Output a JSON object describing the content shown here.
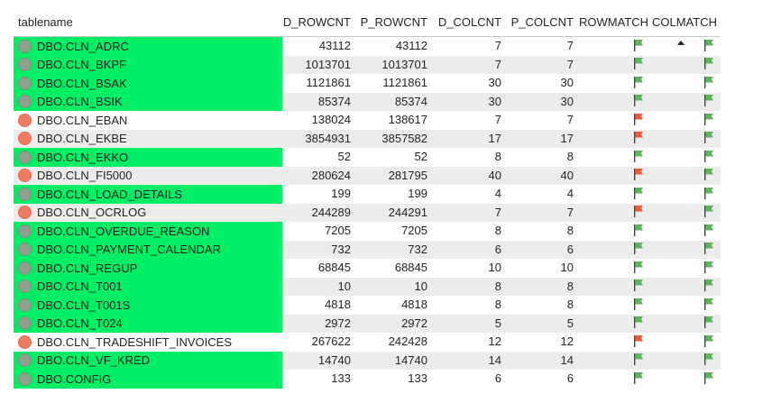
{
  "columns": {
    "name": "tablename",
    "d_rowcnt": "D_ROWCNT",
    "p_rowcnt": "P_ROWCNT",
    "d_colcnt": "D_COLCNT",
    "p_colcnt": "P_COLCNT",
    "rowmatch": "ROWMATCH",
    "colmatch": "COLMATCH"
  },
  "colors": {
    "green_highlight": "#00ee66",
    "status_ok": "#8ea08f",
    "status_mismatch": "#f07a62",
    "flag_ok": "#5fb35f",
    "flag_mismatch": "#f05a3a"
  },
  "sort": {
    "column": "COLMATCH",
    "direction": "ascending"
  },
  "rows": [
    {
      "name": "DBO.CLN_ADRC",
      "d_rowcnt": "43112",
      "p_rowcnt": "43112",
      "d_colcnt": "7",
      "p_colcnt": "7",
      "status": "ok",
      "rowmatch": "green-flag-icon",
      "colmatch": "green-flag-icon"
    },
    {
      "name": "DBO.CLN_BKPF",
      "d_rowcnt": "1013701",
      "p_rowcnt": "1013701",
      "d_colcnt": "7",
      "p_colcnt": "7",
      "status": "ok",
      "rowmatch": "green-flag-icon",
      "colmatch": "green-flag-icon"
    },
    {
      "name": "DBO.CLN_BSAK",
      "d_rowcnt": "1121861",
      "p_rowcnt": "1121861",
      "d_colcnt": "30",
      "p_colcnt": "30",
      "status": "ok",
      "rowmatch": "green-flag-icon",
      "colmatch": "green-flag-icon"
    },
    {
      "name": "DBO.CLN_BSIK",
      "d_rowcnt": "85374",
      "p_rowcnt": "85374",
      "d_colcnt": "30",
      "p_colcnt": "30",
      "status": "ok",
      "rowmatch": "green-flag-icon",
      "colmatch": "green-flag-icon"
    },
    {
      "name": "DBO.CLN_EBAN",
      "d_rowcnt": "138024",
      "p_rowcnt": "138617",
      "d_colcnt": "7",
      "p_colcnt": "7",
      "status": "mismatch",
      "rowmatch": "red-flag-icon",
      "colmatch": "green-flag-icon"
    },
    {
      "name": "DBO.CLN_EKBE",
      "d_rowcnt": "3854931",
      "p_rowcnt": "3857582",
      "d_colcnt": "17",
      "p_colcnt": "17",
      "status": "mismatch",
      "rowmatch": "red-flag-icon",
      "colmatch": "green-flag-icon"
    },
    {
      "name": "DBO.CLN_EKKO",
      "d_rowcnt": "52",
      "p_rowcnt": "52",
      "d_colcnt": "8",
      "p_colcnt": "8",
      "status": "ok",
      "rowmatch": "green-flag-icon",
      "colmatch": "green-flag-icon"
    },
    {
      "name": "DBO.CLN_FI5000",
      "d_rowcnt": "280624",
      "p_rowcnt": "281795",
      "d_colcnt": "40",
      "p_colcnt": "40",
      "status": "mismatch",
      "rowmatch": "red-flag-icon",
      "colmatch": "green-flag-icon"
    },
    {
      "name": "DBO.CLN_LOAD_DETAILS",
      "d_rowcnt": "199",
      "p_rowcnt": "199",
      "d_colcnt": "4",
      "p_colcnt": "4",
      "status": "ok",
      "rowmatch": "green-flag-icon",
      "colmatch": "green-flag-icon"
    },
    {
      "name": "DBO.CLN_OCRLOG",
      "d_rowcnt": "244289",
      "p_rowcnt": "244291",
      "d_colcnt": "7",
      "p_colcnt": "7",
      "status": "mismatch",
      "rowmatch": "red-flag-icon",
      "colmatch": "green-flag-icon"
    },
    {
      "name": "DBO.CLN_OVERDUE_REASON",
      "d_rowcnt": "7205",
      "p_rowcnt": "7205",
      "d_colcnt": "8",
      "p_colcnt": "8",
      "status": "ok",
      "rowmatch": "green-flag-icon",
      "colmatch": "green-flag-icon"
    },
    {
      "name": "DBO.CLN_PAYMENT_CALENDAR",
      "d_rowcnt": "732",
      "p_rowcnt": "732",
      "d_colcnt": "6",
      "p_colcnt": "6",
      "status": "ok",
      "rowmatch": "green-flag-icon",
      "colmatch": "green-flag-icon"
    },
    {
      "name": "DBO.CLN_REGUP",
      "d_rowcnt": "68845",
      "p_rowcnt": "68845",
      "d_colcnt": "10",
      "p_colcnt": "10",
      "status": "ok",
      "rowmatch": "green-flag-icon",
      "colmatch": "green-flag-icon"
    },
    {
      "name": "DBO.CLN_T001",
      "d_rowcnt": "10",
      "p_rowcnt": "10",
      "d_colcnt": "8",
      "p_colcnt": "8",
      "status": "ok",
      "rowmatch": "green-flag-icon",
      "colmatch": "green-flag-icon"
    },
    {
      "name": "DBO.CLN_T001S",
      "d_rowcnt": "4818",
      "p_rowcnt": "4818",
      "d_colcnt": "8",
      "p_colcnt": "8",
      "status": "ok",
      "rowmatch": "green-flag-icon",
      "colmatch": "green-flag-icon"
    },
    {
      "name": "DBO.CLN_T024",
      "d_rowcnt": "2972",
      "p_rowcnt": "2972",
      "d_colcnt": "5",
      "p_colcnt": "5",
      "status": "ok",
      "rowmatch": "green-flag-icon",
      "colmatch": "green-flag-icon"
    },
    {
      "name": "DBO.CLN_TRADESHIFT_INVOICES",
      "d_rowcnt": "267622",
      "p_rowcnt": "242428",
      "d_colcnt": "12",
      "p_colcnt": "12",
      "status": "mismatch",
      "rowmatch": "red-flag-icon",
      "colmatch": "green-flag-icon"
    },
    {
      "name": "DBO.CLN_VF_KRED",
      "d_rowcnt": "14740",
      "p_rowcnt": "14740",
      "d_colcnt": "14",
      "p_colcnt": "14",
      "status": "ok",
      "rowmatch": "green-flag-icon",
      "colmatch": "green-flag-icon"
    },
    {
      "name": "DBO.CONFIG",
      "d_rowcnt": "133",
      "p_rowcnt": "133",
      "d_colcnt": "6",
      "p_colcnt": "6",
      "status": "ok",
      "rowmatch": "green-flag-icon",
      "colmatch": "green-flag-icon"
    }
  ]
}
